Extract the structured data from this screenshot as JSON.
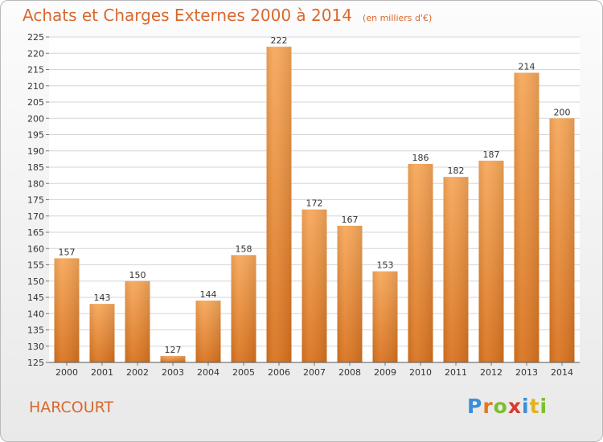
{
  "chart_data": {
    "type": "bar",
    "title": "Achats et Charges Externes 2000 à 2014",
    "subtitle": "(en milliers d'€)",
    "categories": [
      "2000",
      "2001",
      "2002",
      "2003",
      "2004",
      "2005",
      "2006",
      "2007",
      "2008",
      "2009",
      "2010",
      "2011",
      "2012",
      "2013",
      "2014"
    ],
    "values": [
      157,
      143,
      150,
      127,
      144,
      158,
      222,
      172,
      167,
      153,
      186,
      182,
      187,
      214,
      200
    ],
    "ylim": [
      125,
      225
    ],
    "yticks": [
      125,
      130,
      135,
      140,
      145,
      150,
      155,
      160,
      165,
      170,
      175,
      180,
      185,
      190,
      195,
      200,
      205,
      210,
      215,
      220,
      225
    ],
    "grid": true,
    "bar_color_light": "#f7a85a",
    "bar_color_dark": "#d9731f",
    "xlabel": "",
    "ylabel": ""
  },
  "place_label": "HARCOURT",
  "logo": {
    "letters": [
      "P",
      "r",
      "o",
      "x",
      "i",
      "t",
      "i"
    ],
    "colors": [
      "#3a8fd6",
      "#e07a1f",
      "#7cbf2d",
      "#d93a2b",
      "#3a8fd6",
      "#e0b21f",
      "#7cbf2d"
    ]
  }
}
